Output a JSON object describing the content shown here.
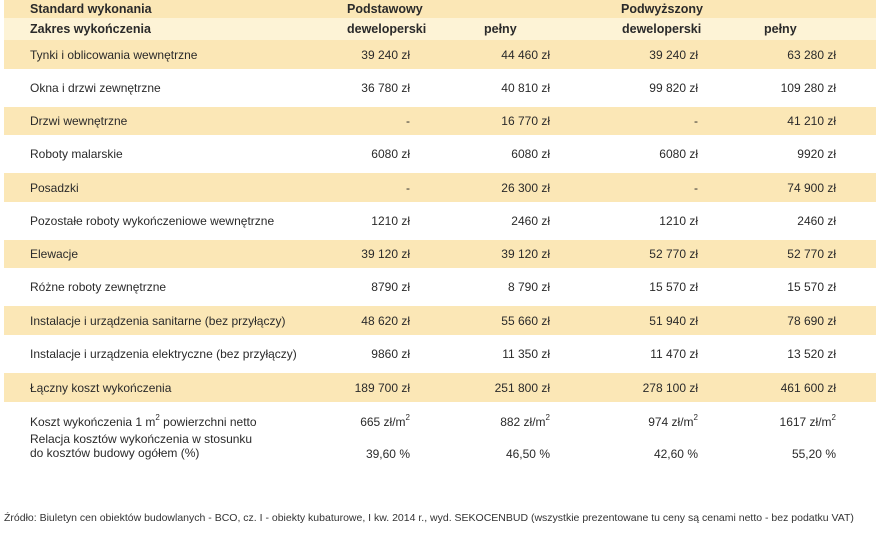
{
  "header": {
    "standard_label": "Standard wykonania",
    "basic": "Podstawowy",
    "higher": "Podwyższony"
  },
  "subheader": {
    "scope_label": "Zakres wykończenia",
    "cols": [
      "deweloperski",
      "pełny",
      "deweloperski",
      "pełny"
    ]
  },
  "rows": [
    {
      "label": "Tynki i oblicowania wewnętrzne",
      "values": [
        "39 240 zł",
        "44 460 zł",
        "39 240 zł",
        "63 280 zł"
      ]
    },
    {
      "label": "Okna i drzwi zewnętrzne",
      "values": [
        "36 780 zł",
        "40 810 zł",
        "99 820 zł",
        "109 280 zł"
      ]
    },
    {
      "label": "Drzwi wewnętrzne",
      "values": [
        "-",
        "16 770 zł",
        "-",
        "41 210 zł"
      ]
    },
    {
      "label": "Roboty malarskie",
      "values": [
        "6080 zł",
        "6080 zł",
        "6080 zł",
        "9920 zł"
      ]
    },
    {
      "label": "Posadzki",
      "values": [
        "-",
        "26 300 zł",
        "-",
        "74 900 zł"
      ]
    },
    {
      "label": "Pozostałe roboty wykończeniowe wewnętrzne",
      "values": [
        "1210 zł",
        "2460 zł",
        "1210 zł",
        "2460 zł"
      ]
    },
    {
      "label": "Elewacje",
      "values": [
        "39 120 zł",
        "39 120 zł",
        "52 770 zł",
        "52 770 zł"
      ]
    },
    {
      "label": "Różne roboty zewnętrzne",
      "values": [
        "8790 zł",
        "8 790 zł",
        "15 570 zł",
        "15 570 zł"
      ]
    },
    {
      "label": "Instalacje i urządzenia sanitarne (bez przyłączy)",
      "values": [
        "48 620 zł",
        "55 660 zł",
        "51 940 zł",
        "78 690 zł"
      ]
    },
    {
      "label": "Instalacje i urządzenia elektryczne (bez przyłączy)",
      "values": [
        "9860 zł",
        "11 350 zł",
        "11 470 zł",
        "13 520 zł"
      ]
    },
    {
      "label": "Łączny koszt wykończenia",
      "values": [
        "189 700 zł",
        "251 800 zł",
        "278 100 zł",
        "461 600 zł"
      ]
    }
  ],
  "cost_per_m2": {
    "label_before": "Koszt wykończenia 1 m",
    "label_sup": "2",
    "label_after": " powierzchni netto",
    "values": [
      "665 zł/m",
      "882 zł/m",
      "974 zł/m",
      "1617 zł/m"
    ],
    "unit_sup": "2"
  },
  "ratio": {
    "line1": "Relacja kosztów wykończenia w stosunku",
    "line2": "do kosztów budowy ogółem (%)",
    "values": [
      "39,60 %",
      "46,50 %",
      "42,60 %",
      "55,20 %"
    ]
  },
  "source": "Źródło: Biuletyn cen obiektów budowlanych - BCO, cz. I - obiekty kubaturowe, I kw. 2014 r., wyd. SEKOCENBUD (wszystkie prezentowane tu ceny są cenami netto - bez podatku VAT)",
  "colors": {
    "shade": "#fbe7b6",
    "light": "#fdf3d6",
    "separator": "#f3d89a"
  }
}
